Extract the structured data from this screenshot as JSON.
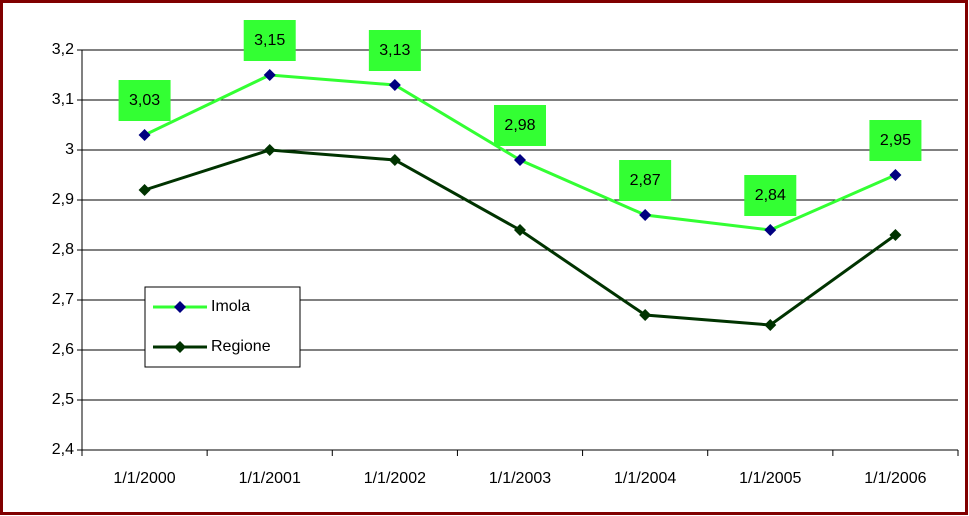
{
  "chart_data": {
    "type": "line",
    "categories": [
      "1/1/2000",
      "1/1/2001",
      "1/1/2002",
      "1/1/2003",
      "1/1/2004",
      "1/1/2005",
      "1/1/2006"
    ],
    "series": [
      {
        "name": "Imola",
        "color": "#33ff33",
        "marker_color": "#000080",
        "values": [
          3.03,
          3.15,
          3.13,
          2.98,
          2.87,
          2.84,
          2.95
        ],
        "value_labels": [
          "3,03",
          "3,15",
          "3,13",
          "2,98",
          "2,87",
          "2,84",
          "2,95"
        ]
      },
      {
        "name": "Regione",
        "color": "#003300",
        "marker_color": "#003300",
        "values": [
          2.92,
          3.0,
          2.98,
          2.84,
          2.67,
          2.65,
          2.83
        ]
      }
    ],
    "ylim": [
      2.4,
      3.2
    ],
    "yticks": [
      {
        "value": 2.4,
        "label": "2,4"
      },
      {
        "value": 2.5,
        "label": "2,5"
      },
      {
        "value": 2.6,
        "label": "2,6"
      },
      {
        "value": 2.7,
        "label": "2,7"
      },
      {
        "value": 2.8,
        "label": "2,8"
      },
      {
        "value": 2.9,
        "label": "2,9"
      },
      3,
      {
        "value": 3.1,
        "label": "3,1"
      },
      {
        "value": 3.2,
        "label": "3,2"
      }
    ],
    "grid": true,
    "legend": "center left"
  }
}
